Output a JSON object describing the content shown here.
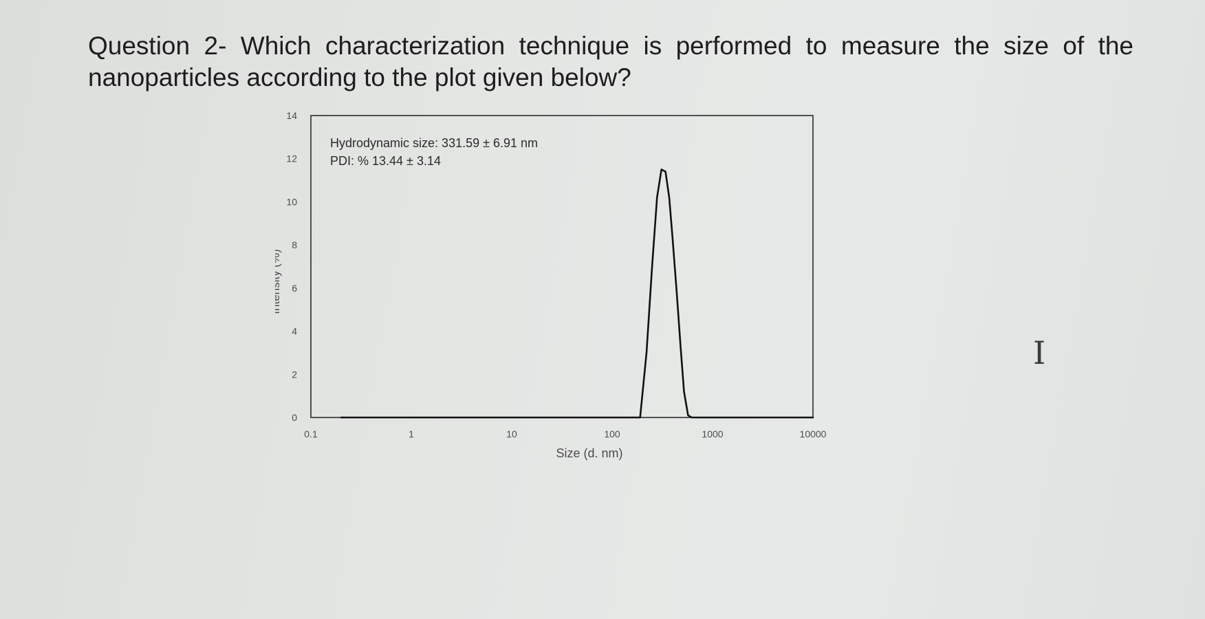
{
  "question": {
    "text": "Question 2- Which characterization technique is performed to measure the size of the nanoparticles according to the plot given below?"
  },
  "chart_data": {
    "type": "line",
    "xscale": "log",
    "xlabel": "Size (d. nm)",
    "ylabel": "Intensity (%)",
    "xlim": [
      0.1,
      10000
    ],
    "ylim": [
      0,
      14
    ],
    "xticks": [
      0.1,
      1,
      10,
      100,
      1000,
      10000
    ],
    "xtick_labels": [
      "0.1",
      "1",
      "10",
      "100",
      "1000",
      "10000"
    ],
    "yticks": [
      0,
      2,
      4,
      6,
      8,
      10,
      12,
      14
    ],
    "ytick_labels": [
      "0",
      "2",
      "4",
      "6",
      "8",
      "10",
      "12",
      "14"
    ],
    "annotations": [
      "Hydrodynamic size: 331.59 ± 6.91 nm",
      "PDI: % 13.44 ± 3.14"
    ],
    "grid": false,
    "legend": "none",
    "series": [
      {
        "color": "#111111",
        "x": [
          0.2,
          150,
          190,
          220,
          250,
          280,
          310,
          340,
          370,
          400,
          440,
          480,
          520,
          570,
          620,
          10000
        ],
        "y": [
          0,
          0,
          0,
          3.0,
          7.0,
          10.2,
          11.5,
          11.4,
          10.2,
          8.3,
          5.8,
          3.3,
          1.2,
          0.1,
          0,
          0
        ]
      }
    ]
  },
  "cursor": {
    "glyph": "I"
  }
}
